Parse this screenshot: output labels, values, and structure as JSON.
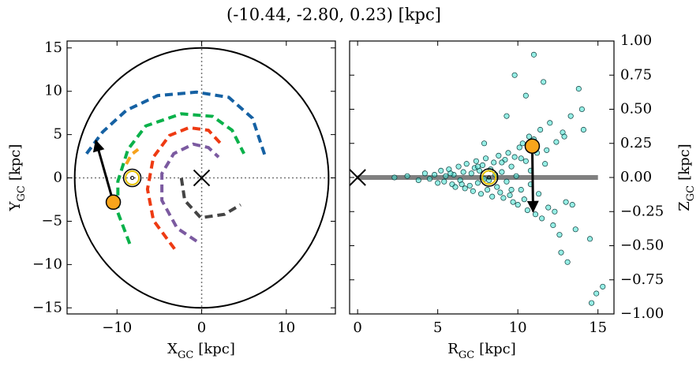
{
  "title": "(-10.44, -2.80, 0.23) [kpc]",
  "chart_data": [
    {
      "type": "line",
      "xlabel": [
        "X",
        "GC",
        "[kpc]"
      ],
      "ylabel": [
        "Y",
        "GC",
        "[kpc]"
      ],
      "xlim": [
        -15.9,
        15.8
      ],
      "ylim": [
        -15.7,
        15.8
      ],
      "xticks": [
        {
          "value": -10,
          "label": "−10"
        },
        0,
        10
      ],
      "yticks": [
        {
          "value": -15,
          "label": "−15"
        },
        {
          "value": -10,
          "label": "−10"
        },
        {
          "value": -5,
          "label": "−5"
        },
        0,
        5,
        10,
        15
      ],
      "circle": {
        "radius": 15,
        "color": "#000000"
      },
      "series": [
        {
          "color": "#1561a3",
          "x": [
            -13.6,
            -11.7,
            -8.9,
            -5.2,
            -0.6,
            3.2,
            6.0,
            7.5
          ],
          "y": [
            2.8,
            5.3,
            7.8,
            9.5,
            9.9,
            9.3,
            6.9,
            2.5
          ]
        },
        {
          "color": "#0ab14a",
          "x": [
            -8.5,
            -9.9,
            -9.9,
            -8.7,
            -6.6,
            -2.4,
            1.3,
            3.6,
            5.0
          ],
          "y": [
            -7.6,
            -4.0,
            -0.4,
            3.3,
            6.0,
            7.4,
            7.1,
            5.5,
            2.8
          ]
        },
        {
          "color": "#f6a11b",
          "x": [
            -8.9,
            -8.3,
            -7.5
          ],
          "y": [
            1.6,
            2.7,
            3.3
          ]
        },
        {
          "color": "#ee3a12",
          "x": [
            -3.2,
            -5.7,
            -6.4,
            -5.7,
            -3.8,
            -1.5,
            0.8,
            2.5
          ],
          "y": [
            -8.2,
            -4.9,
            -1.3,
            2.4,
            4.9,
            5.8,
            5.5,
            3.7
          ]
        },
        {
          "color": "#7b5aa0",
          "x": [
            -0.6,
            -2.9,
            -4.7,
            -4.7,
            -3.3,
            -1.0,
            0.8,
            2.0
          ],
          "y": [
            -7.3,
            -5.8,
            -2.6,
            0.5,
            2.8,
            3.9,
            3.5,
            2.4
          ]
        },
        {
          "color": "#444444",
          "x": [
            -2.4,
            -2.0,
            -0.1,
            2.7,
            4.6
          ],
          "y": [
            0.0,
            -2.6,
            -4.6,
            -4.2,
            -3.1
          ]
        }
      ],
      "arrow": {
        "x": [
          -10.44,
          -12.5
        ],
        "y": [
          -2.8,
          4.3
        ]
      },
      "star": {
        "x": -10.44,
        "y": -2.8,
        "color": "#f8a51b"
      },
      "sun": {
        "x": -8.2,
        "y": 0
      },
      "center": {
        "x": 0,
        "y": 0
      }
    },
    {
      "type": "scatter",
      "xlabel": [
        "R",
        "GC",
        "[kpc]"
      ],
      "ylabel": [
        "Z",
        "GC",
        "[kpc]"
      ],
      "xlim": [
        -0.5,
        16
      ],
      "ylim": [
        -1,
        1
      ],
      "xticks": [
        0,
        5,
        10,
        15
      ],
      "yticks": [
        {
          "value": -1,
          "label": "−1.00"
        },
        {
          "value": -0.75,
          "label": "−0.75"
        },
        {
          "value": -0.5,
          "label": "−0.50"
        },
        {
          "value": -0.25,
          "label": "−0.25"
        },
        {
          "value": 0,
          "label": "0.00"
        },
        {
          "value": 0.25,
          "label": "0.25"
        },
        {
          "value": 0.5,
          "label": "0.50"
        },
        {
          "value": 0.75,
          "label": "0.75"
        },
        {
          "value": 1,
          "label": "1.00"
        }
      ],
      "color": "#40e0d0",
      "x": [
        2.3,
        3.1,
        3.8,
        4.2,
        4.5,
        4.8,
        5.0,
        5.2,
        5.4,
        5.5,
        5.7,
        5.9,
        6.0,
        6.1,
        6.3,
        6.4,
        6.6,
        6.7,
        6.8,
        7.0,
        7.1,
        7.2,
        7.3,
        7.4,
        7.5,
        7.6,
        7.7,
        7.8,
        7.9,
        8.0,
        8.1,
        8.3,
        8.4,
        8.5,
        8.6,
        8.7,
        8.8,
        8.9,
        9.0,
        9.1,
        9.2,
        9.3,
        9.4,
        9.5,
        9.6,
        9.7,
        9.8,
        9.9,
        10.0,
        10.1,
        10.2,
        10.3,
        10.4,
        10.5,
        10.6,
        10.7,
        10.8,
        11.0,
        11.1,
        11.2,
        11.4,
        11.5,
        11.7,
        11.9,
        12.0,
        12.2,
        12.4,
        12.6,
        12.8,
        13.0,
        13.3,
        13.6,
        14.0,
        14.5,
        5.8,
        6.5,
        7.5,
        8.2,
        9.0,
        9.6,
        10.2,
        10.8,
        11.3,
        11.8,
        12.3,
        12.9,
        13.4,
        14.1,
        7.9,
        9.3,
        10.5,
        11.6,
        12.7,
        13.8,
        14.9,
        15.3,
        9.8,
        11.0,
        13.1,
        14.6
      ],
      "y": [
        0.0,
        0.01,
        -0.02,
        0.03,
        -0.01,
        0.02,
        -0.04,
        0.05,
        -0.03,
        0.01,
        0.06,
        -0.05,
        0.02,
        -0.07,
        0.08,
        -0.02,
        0.04,
        -0.08,
        0.1,
        -0.06,
        0.03,
        -0.1,
        0.07,
        0.12,
        -0.04,
        0.05,
        -0.12,
        0.09,
        -0.01,
        0.14,
        -0.09,
        0.06,
        -0.14,
        0.11,
        0.02,
        -0.07,
        0.16,
        -0.11,
        0.04,
        -0.15,
        0.13,
        -0.03,
        0.18,
        -0.13,
        0.08,
        -0.18,
        0.15,
        0.01,
        -0.2,
        0.22,
        -0.09,
        0.25,
        -0.16,
        0.12,
        -0.24,
        0.3,
        -0.05,
        0.28,
        -0.27,
        0.18,
        0.35,
        -0.3,
        0.1,
        -0.22,
        0.4,
        -0.35,
        0.26,
        -0.42,
        0.33,
        -0.18,
        0.45,
        -0.38,
        0.5,
        -0.45,
        0.03,
        -0.05,
        0.08,
        -0.02,
        0.11,
        -0.09,
        0.14,
        0.05,
        -0.12,
        0.2,
        -0.25,
        0.3,
        -0.2,
        0.35,
        0.25,
        0.45,
        0.6,
        0.7,
        -0.55,
        0.65,
        -0.85,
        -0.8,
        0.75,
        0.9,
        -0.62,
        -0.92
      ],
      "disk": {
        "x": [
          0,
          15
        ],
        "y": [
          0,
          0
        ],
        "color": "#808080"
      },
      "arrow": {
        "x": [
          10.9,
          10.95
        ],
        "y": [
          0.23,
          -0.25
        ]
      },
      "star": {
        "x": 10.9,
        "y": 0.23,
        "color": "#f8a51b"
      },
      "sun": {
        "x": 8.2,
        "y": 0
      },
      "center": {
        "x": 0,
        "y": 0
      }
    }
  ]
}
